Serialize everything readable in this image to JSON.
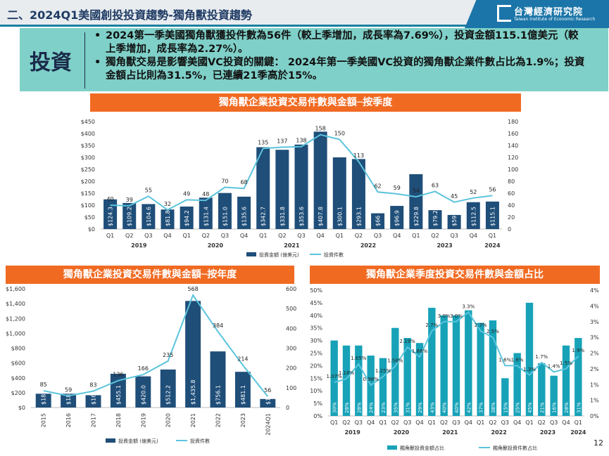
{
  "header": {
    "title": "二、2024Q1美國創投投資趨勢-獨角獸投資趨勢",
    "logo_cn": "台灣經濟研究院",
    "logo_en": "Taiwan Institute of Economic Research"
  },
  "box": {
    "label": "投資",
    "bullets": [
      "2024第一季美國獨角獸獲投件數為56件（較上季增加，成長率為7.69%），投資金額115.1億美元（較上季增加，成長率為2.27%）。",
      "獨角獸交易是影響美國VC投資的關鍵： 2024年第一季美國VC投資的獨角獸企業件數占比為1.9%；投資金額占比則為31.5%，已連續21季高於15%。"
    ]
  },
  "page": "12",
  "colors": {
    "bar": "#1f4e79",
    "line": "#5bc4dc",
    "bar3": "#17a2b8",
    "line3": "#5bc4dc",
    "orange": "#f06a22"
  },
  "chart_data": [
    {
      "type": "bar",
      "title": "獨角獸企業投資交易件數與金額─按季度",
      "quarters": [
        "Q1",
        "Q2",
        "Q3",
        "Q4",
        "Q1",
        "Q2",
        "Q3",
        "Q4",
        "Q1",
        "Q2",
        "Q3",
        "Q4",
        "Q1",
        "Q2",
        "Q3",
        "Q4",
        "Q1",
        "Q2",
        "Q3",
        "Q4",
        "Q1"
      ],
      "years": [
        "2019",
        "2020",
        "2021",
        "2022",
        "2023",
        "2024"
      ],
      "amount_labels": [
        "$124.3",
        "$109.2",
        "$104.6",
        "$81.8",
        "$94.2",
        "$131.4",
        "$151.0",
        "$135.6",
        "$342.7",
        "$331.8",
        "$353.6",
        "$407.8",
        "$300.1",
        "$293.1",
        "$66",
        "$96.9",
        "$229.8",
        "$79.2",
        "$59",
        "$112.5",
        "$115.1"
      ],
      "amounts": [
        124.3,
        109.2,
        104.6,
        81.8,
        94.2,
        131.4,
        151.0,
        135.6,
        342.7,
        331.8,
        353.6,
        407.8,
        300.1,
        293.1,
        66,
        96.9,
        229.8,
        79.2,
        59,
        112.5,
        115.1
      ],
      "counts": [
        40,
        39,
        55,
        32,
        49,
        48,
        70,
        68,
        135,
        137,
        138,
        158,
        150,
        113,
        62,
        59,
        54,
        63,
        45,
        52,
        56
      ],
      "left_ticks": [
        "$0",
        "$50",
        "$100",
        "$150",
        "$200",
        "$250",
        "$300",
        "$350",
        "$400",
        "$450"
      ],
      "right_ticks": [
        "0",
        "20",
        "40",
        "60",
        "80",
        "100",
        "120",
        "140",
        "160",
        "180"
      ],
      "ylim": [
        0,
        450
      ],
      "y2lim": [
        0,
        180
      ],
      "legend": [
        "投資金額 (億美元)",
        "投資件數"
      ]
    },
    {
      "type": "bar",
      "title": "獨角獸企業投資交易件數與金額─按年度",
      "categories": [
        "2015",
        "2016",
        "2017",
        "2018",
        "2019",
        "2020",
        "2021",
        "2022",
        "2023",
        "2024Q1"
      ],
      "amount_labels": [
        "$186",
        "$186",
        "$166",
        "$455.1",
        "$420.0",
        "$512.2",
        "$1,435.8",
        "$756.1",
        "$481.1",
        "$115.1"
      ],
      "amounts": [
        186,
        186,
        166,
        455.1,
        420.0,
        512.2,
        1435.8,
        756.1,
        481.1,
        115.1
      ],
      "counts": [
        85,
        59,
        83,
        136,
        166,
        235,
        568,
        384,
        214,
        56
      ],
      "left_ticks": [
        "$0",
        "$200",
        "$400",
        "$600",
        "$800",
        "$1,000",
        "$1,200",
        "$1,400",
        "$1,600"
      ],
      "right_ticks": [
        "0",
        "100",
        "200",
        "300",
        "400",
        "500",
        "600"
      ],
      "ylim": [
        0,
        1600
      ],
      "y2lim": [
        0,
        600
      ],
      "legend": [
        "投資金額 (億美元)",
        "投資件數"
      ]
    },
    {
      "type": "bar",
      "title": "獨角獸企業季度投資交易件數與金額占比",
      "quarters": [
        "Q1",
        "Q2",
        "Q3",
        "Q4",
        "Q1",
        "Q2",
        "Q3",
        "Q4",
        "Q1",
        "Q2",
        "Q3",
        "Q4",
        "Q1",
        "Q2",
        "Q3",
        "Q4",
        "Q1",
        "Q2",
        "Q3",
        "Q4",
        "Q1"
      ],
      "years": [
        "2019",
        "2020",
        "2021",
        "2022",
        "2023",
        "2024"
      ],
      "share_labels": [
        "30%",
        "28%",
        "28%",
        "24%",
        "23%",
        "35%",
        "31%",
        "29%",
        "43%",
        "40%",
        "40%",
        "42%",
        "37%",
        "38%",
        "15%",
        "25%",
        "45%",
        "21%",
        "16%",
        "28%",
        "31%"
      ],
      "shares": [
        30,
        28,
        28,
        24,
        23,
        35,
        31,
        29,
        43,
        40,
        40,
        42,
        37,
        38,
        15,
        25,
        45,
        21,
        16,
        28,
        31
      ],
      "count_share_labels": [
        "1.07%",
        "1.18%",
        "1.65%",
        "0.98%",
        "1.25%",
        "1.58%",
        "2.19%",
        "1.88%",
        "2.7%",
        "3.0%",
        "3.0%",
        "3.3%",
        "2.7%",
        "2.5%",
        "1.6%",
        "1.6%",
        "1.3%",
        "1.7%",
        "1.4%",
        "1.5%",
        "1.9%"
      ],
      "count_shares": [
        1.07,
        1.18,
        1.65,
        0.98,
        1.25,
        1.58,
        2.19,
        1.88,
        2.7,
        3.0,
        3.0,
        3.3,
        2.7,
        2.5,
        1.6,
        1.6,
        1.3,
        1.7,
        1.4,
        1.5,
        1.9
      ],
      "left_ticks": [
        "0%",
        "5%",
        "10%",
        "15%",
        "20%",
        "25%",
        "30%",
        "35%",
        "40%",
        "45%",
        "50%"
      ],
      "right_ticks": [
        "0%",
        "1%",
        "1%",
        "2%",
        "2%",
        "3%",
        "3%",
        "4%",
        "4%"
      ],
      "ylim": [
        0,
        50
      ],
      "y2lim": [
        0,
        4
      ],
      "legend": [
        "獨角獸投資金額占比",
        "獨角獸投資件數占比"
      ]
    }
  ]
}
